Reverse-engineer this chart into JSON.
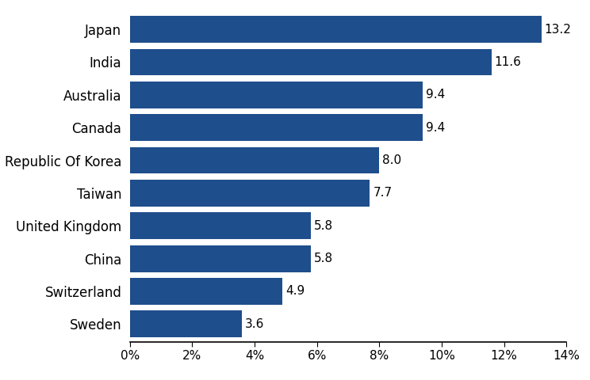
{
  "countries": [
    "Sweden",
    "Switzerland",
    "China",
    "United Kingdom",
    "Taiwan",
    "Republic Of Korea",
    "Canada",
    "Australia",
    "India",
    "Japan"
  ],
  "values": [
    3.6,
    4.9,
    5.8,
    5.8,
    7.7,
    8.0,
    9.4,
    9.4,
    11.6,
    13.2
  ],
  "bar_color": "#1f4e8c",
  "label_fontsize": 12,
  "tick_fontsize": 11,
  "value_fontsize": 11,
  "xlim": [
    0,
    14
  ],
  "xtick_values": [
    0,
    2,
    4,
    6,
    8,
    10,
    12,
    14
  ],
  "background_color": "#ffffff",
  "bar_height": 0.82,
  "figsize": [
    7.44,
    4.8
  ],
  "dpi": 100
}
